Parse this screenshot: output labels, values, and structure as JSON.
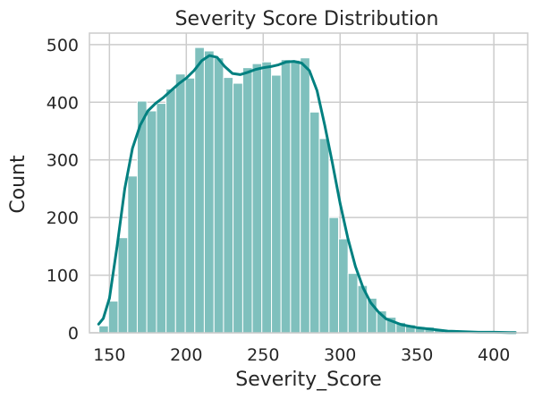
{
  "chart_data": {
    "type": "bar",
    "title": "Severity Score Distribution",
    "xlabel": "Severity_Score",
    "ylabel": "Count",
    "xlim": [
      137,
      422
    ],
    "ylim": [
      0,
      520
    ],
    "grid": true,
    "x_ticks": [
      150,
      200,
      250,
      300,
      350,
      400
    ],
    "y_ticks": [
      0,
      100,
      200,
      300,
      400,
      500
    ],
    "bin_edges": [
      143.2,
      149.4,
      155.6,
      161.9,
      168.1,
      174.3,
      180.6,
      186.8,
      193.0,
      199.3,
      205.5,
      211.7,
      218.0,
      224.2,
      230.4,
      236.7,
      242.9,
      249.1,
      255.4,
      261.6,
      267.8,
      274.1,
      280.3,
      286.5,
      292.8,
      299.0,
      305.2,
      311.5,
      317.7,
      323.9,
      330.2,
      336.4,
      342.6,
      348.9,
      355.1,
      361.3,
      367.6,
      373.8,
      380.0,
      386.3,
      392.5,
      398.7,
      405.0,
      411.2,
      417.4
    ],
    "counts": [
      12,
      55,
      165,
      272,
      402,
      385,
      398,
      423,
      449,
      442,
      495,
      489,
      477,
      443,
      433,
      460,
      467,
      470,
      447,
      474,
      473,
      477,
      383,
      337,
      200,
      163,
      103,
      82,
      60,
      38,
      27,
      18,
      14,
      11,
      10,
      6,
      5,
      4,
      3,
      3,
      2,
      2,
      1,
      1
    ],
    "kde": {
      "x": [
        143,
        146,
        150,
        155,
        160,
        165,
        170,
        175,
        180,
        185,
        190,
        195,
        200,
        205,
        210,
        215,
        220,
        225,
        230,
        235,
        240,
        245,
        250,
        255,
        260,
        265,
        270,
        275,
        280,
        285,
        290,
        295,
        300,
        305,
        310,
        315,
        320,
        325,
        330,
        340,
        350,
        360,
        370,
        380,
        390,
        400,
        410,
        414
      ],
      "y": [
        15,
        25,
        60,
        150,
        250,
        320,
        360,
        385,
        398,
        408,
        420,
        432,
        442,
        455,
        472,
        481,
        478,
        462,
        450,
        448,
        452,
        457,
        460,
        462,
        465,
        470,
        471,
        468,
        455,
        420,
        360,
        295,
        225,
        165,
        115,
        78,
        52,
        36,
        24,
        14,
        9,
        6,
        3,
        2,
        1,
        1,
        0.5,
        0.3
      ]
    },
    "colors": {
      "bar_fill": "#7fc0bd",
      "bar_stroke": "#ffffff",
      "kde_line": "#008080",
      "grid": "#cccccc",
      "frame": "#cccccc",
      "text": "#262626"
    }
  }
}
